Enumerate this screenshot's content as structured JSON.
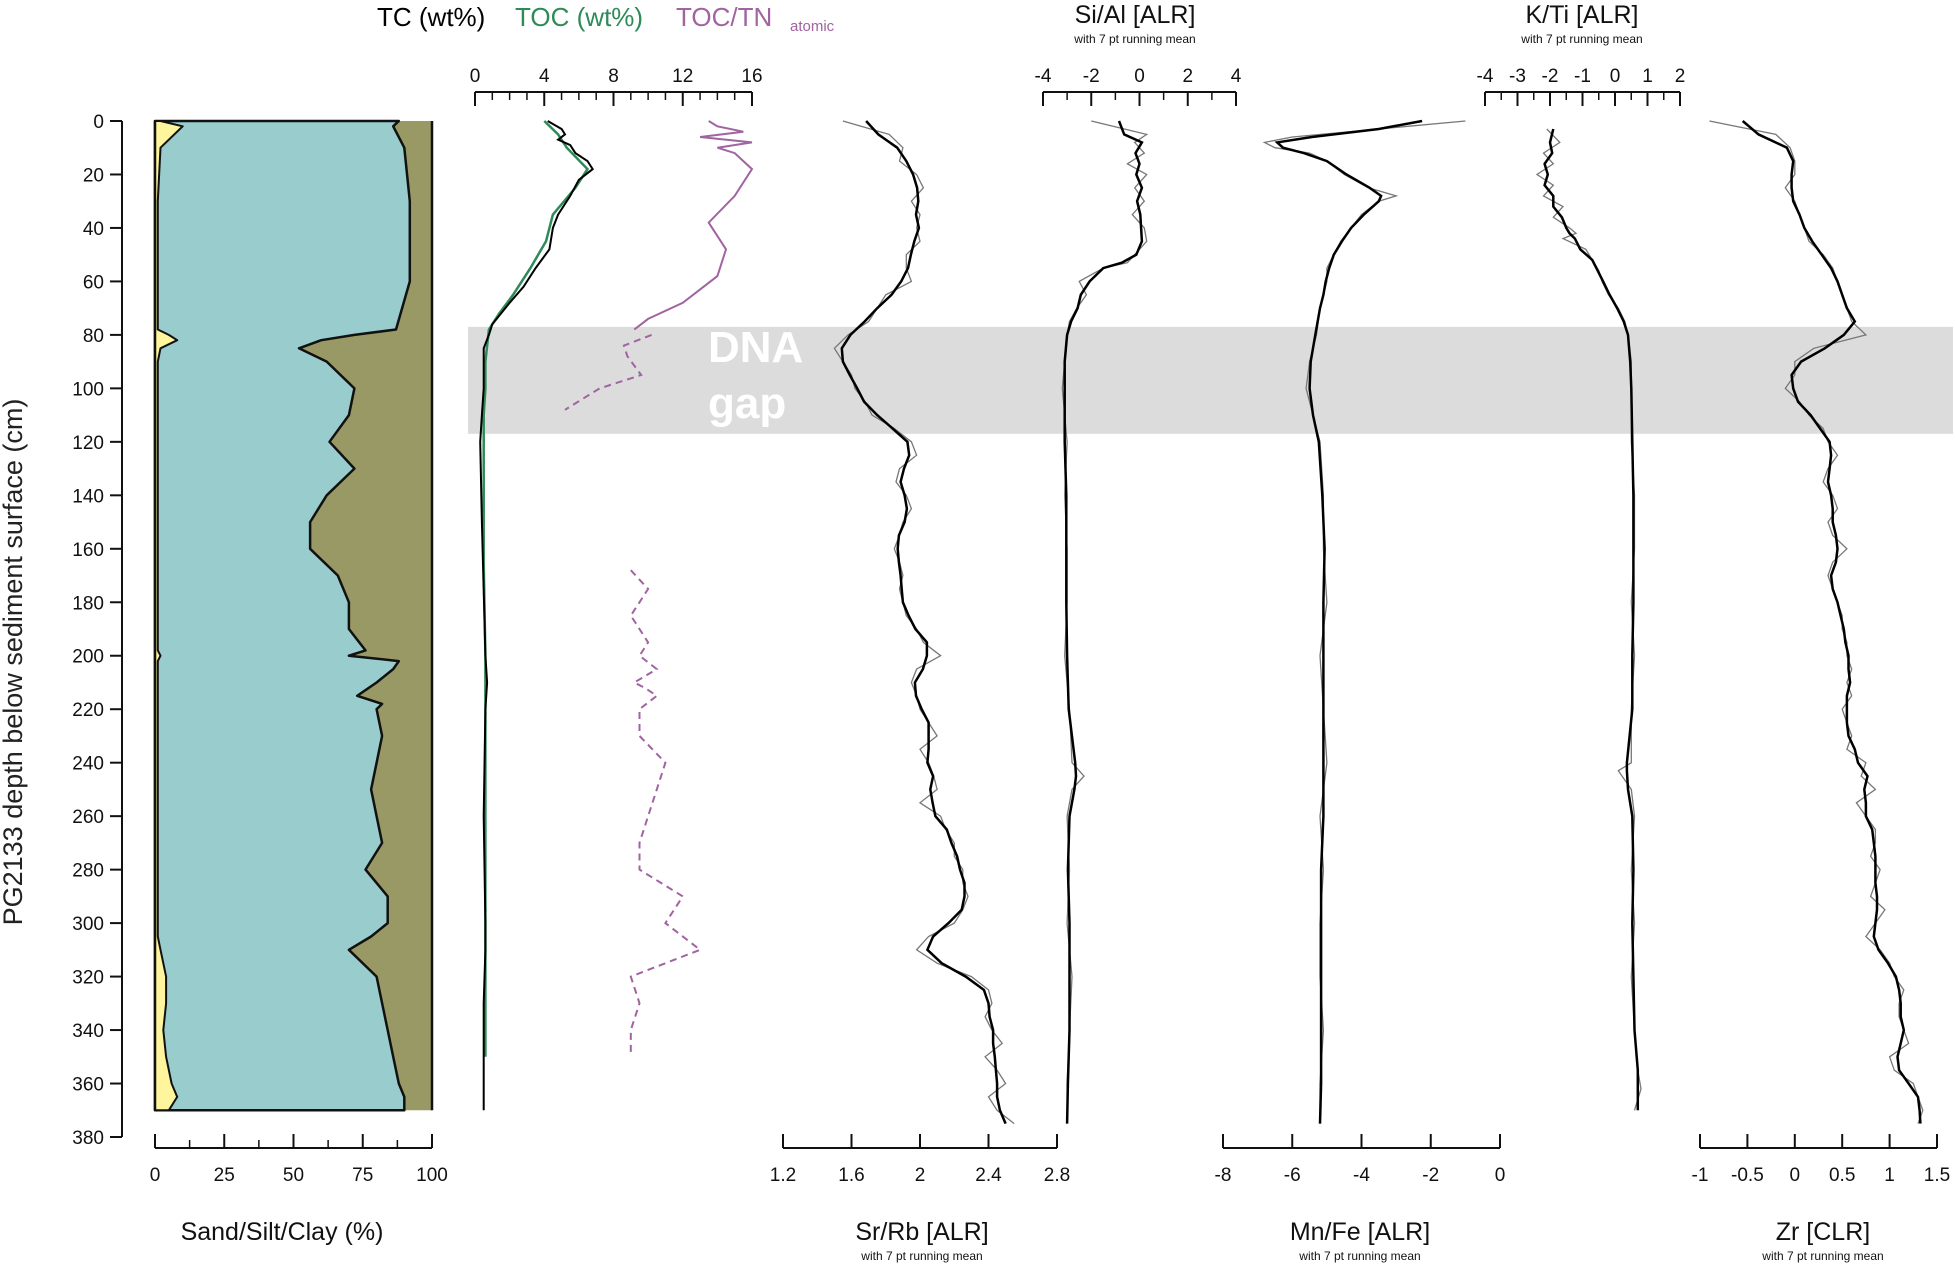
{
  "chart_data": {
    "type": "line",
    "depth_axis": {
      "label": "PG2133 depth below sediment surface (cm)",
      "range": [
        0,
        380
      ],
      "ticks": [
        0,
        20,
        40,
        60,
        80,
        100,
        120,
        140,
        160,
        180,
        200,
        220,
        240,
        260,
        280,
        300,
        320,
        340,
        360,
        380
      ]
    },
    "gap": {
      "label_line1": "DNA",
      "label_line2": "gap",
      "from": 77,
      "to": 117
    },
    "colors": {
      "sand": "#fff59d",
      "silt": "#99cccc",
      "clay": "#999966",
      "tc": "#000000",
      "toc": "#2e8b57",
      "toctn": "#a064a0",
      "gap": "#dcdcdc"
    },
    "panels": {
      "grain": {
        "label": "Sand/Silt/Clay (%)",
        "xlim": [
          0,
          100
        ],
        "ticks": [
          0,
          25,
          50,
          75,
          100
        ],
        "depths": [
          0,
          2,
          10,
          30,
          60,
          78,
          80,
          82,
          85,
          90,
          100,
          110,
          120,
          130,
          140,
          150,
          160,
          170,
          180,
          190,
          198,
          200,
          202,
          205,
          210,
          215,
          218,
          220,
          230,
          240,
          250,
          260,
          270,
          280,
          290,
          300,
          305,
          310,
          320,
          330,
          340,
          350,
          360,
          365,
          370
        ],
        "sand_cum": [
          2,
          10,
          2,
          1,
          1,
          1,
          5,
          8,
          2,
          1,
          1,
          1,
          1,
          1,
          1,
          1,
          1,
          1,
          1,
          1,
          1,
          2,
          1,
          1,
          1,
          1,
          1,
          1,
          1,
          1,
          1,
          1,
          1,
          1,
          1,
          1,
          1,
          2,
          4,
          4,
          3,
          4,
          6,
          8,
          5
        ],
        "silt_cum": [
          88,
          86,
          90,
          92,
          92,
          87,
          72,
          60,
          52,
          62,
          72,
          70,
          63,
          72,
          62,
          56,
          56,
          66,
          70,
          70,
          76,
          70,
          88,
          86,
          80,
          73,
          82,
          80,
          82,
          80,
          78,
          80,
          82,
          76,
          84,
          84,
          78,
          70,
          80,
          82,
          84,
          86,
          88,
          90,
          90
        ]
      },
      "carbon": {
        "header_tc": "TC (wt%)",
        "header_toc": "TOC (wt%)",
        "header_toctn": "TOC/TN",
        "header_toctn_sub": "atomic",
        "xlim": [
          0,
          16
        ],
        "ticks": [
          0,
          4,
          8,
          12,
          16
        ],
        "tc_depths": [
          0,
          3,
          5,
          7,
          9,
          12,
          15,
          18,
          22,
          28,
          35,
          40,
          48,
          55,
          62,
          68,
          72,
          76,
          80,
          85,
          90,
          100,
          110,
          120,
          150,
          200,
          210,
          220,
          260,
          300,
          310,
          330,
          350,
          370
        ],
        "tc_values": [
          4.2,
          5.0,
          5.2,
          4.8,
          5.5,
          5.8,
          6.5,
          6.8,
          6.0,
          5.5,
          4.8,
          4.5,
          4.3,
          3.5,
          2.8,
          2.0,
          1.5,
          1.0,
          0.8,
          0.5,
          0.5,
          0.5,
          0.4,
          0.3,
          0.4,
          0.6,
          0.7,
          0.6,
          0.5,
          0.6,
          0.6,
          0.5,
          0.5,
          0.5
        ],
        "toc_depths": [
          0,
          5,
          10,
          18,
          25,
          35,
          45,
          55,
          65,
          72,
          78,
          90,
          100,
          110,
          165,
          200,
          240,
          280,
          320,
          350
        ],
        "toc_values": [
          4.0,
          4.8,
          5.3,
          6.5,
          5.8,
          4.5,
          4.1,
          3.2,
          2.2,
          1.4,
          0.8,
          0.6,
          0.6,
          0.5,
          0.5,
          0.6,
          0.6,
          0.6,
          0.6,
          0.6
        ],
        "toctn_solid_depths": [
          0,
          2,
          4,
          6,
          8,
          10,
          12,
          18,
          28,
          38,
          48,
          58,
          68,
          74,
          78
        ],
        "toctn_solid_values": [
          13.5,
          14,
          15.5,
          13,
          16,
          14,
          15,
          16,
          15,
          13.5,
          14.5,
          14,
          12,
          10,
          9.2
        ],
        "toctn_dash_upper_depths": [
          80,
          84,
          88,
          95,
          100,
          108
        ],
        "toctn_dash_upper_values": [
          10.2,
          8.6,
          8.8,
          9.6,
          7.2,
          5.2
        ],
        "toctn_dash_lower_depths": [
          168,
          175,
          180,
          185,
          195,
          200,
          205,
          210,
          212,
          215,
          220,
          230,
          240,
          250,
          260,
          270,
          280,
          290,
          300,
          310,
          320,
          330,
          340,
          350
        ],
        "toctn_dash_lower_values": [
          9,
          10,
          9.5,
          9,
          10,
          9.5,
          10.5,
          9.2,
          9.8,
          10.5,
          9.5,
          9.5,
          11,
          10.5,
          10,
          9.5,
          9.5,
          12,
          11,
          13,
          9,
          9.5,
          9,
          9
        ]
      },
      "srrb": {
        "label": "Sr/Rb [ALR]",
        "sublabel": "with 7 pt running mean",
        "xlim": [
          1.2,
          2.8
        ],
        "ticks": [
          "1.2",
          "1.6",
          "2",
          "2.4",
          "2.8"
        ],
        "depths": [
          0,
          5,
          10,
          15,
          20,
          25,
          30,
          35,
          40,
          45,
          50,
          55,
          60,
          65,
          70,
          75,
          80,
          85,
          90,
          95,
          100,
          105,
          110,
          115,
          120,
          125,
          130,
          135,
          140,
          145,
          150,
          155,
          160,
          165,
          170,
          175,
          180,
          185,
          190,
          195,
          200,
          205,
          210,
          215,
          220,
          225,
          230,
          235,
          240,
          245,
          250,
          255,
          260,
          265,
          270,
          275,
          280,
          285,
          290,
          295,
          300,
          305,
          310,
          315,
          320,
          325,
          330,
          335,
          340,
          345,
          350,
          355,
          360,
          365,
          370,
          375
        ],
        "values": [
          1.55,
          1.82,
          1.9,
          1.88,
          1.98,
          2.02,
          1.95,
          2.0,
          1.98,
          2.0,
          1.92,
          1.92,
          1.95,
          1.8,
          1.75,
          1.7,
          1.58,
          1.5,
          1.55,
          1.6,
          1.62,
          1.68,
          1.72,
          1.85,
          1.95,
          1.98,
          1.88,
          1.86,
          1.92,
          1.95,
          1.9,
          1.88,
          1.85,
          1.88,
          1.9,
          1.88,
          1.9,
          1.92,
          1.98,
          2.02,
          2.12,
          1.98,
          1.95,
          1.98,
          2.0,
          2.05,
          2.1,
          2.0,
          2.05,
          2.08,
          2.1,
          2.0,
          2.12,
          2.15,
          2.2,
          2.2,
          2.25,
          2.25,
          2.28,
          2.25,
          2.2,
          2.05,
          1.98,
          2.1,
          2.3,
          2.4,
          2.42,
          2.38,
          2.42,
          2.48,
          2.38,
          2.45,
          2.5,
          2.4,
          2.45,
          2.55
        ]
      },
      "sial": {
        "label": "Si/Al [ALR]",
        "sublabel": "with 7 pt running mean",
        "xlim": [
          -4,
          4
        ],
        "ticks": [
          "-4",
          "-2",
          "0",
          "2",
          "4"
        ],
        "depths": [
          0,
          5,
          8,
          12,
          16,
          20,
          25,
          30,
          35,
          40,
          45,
          50,
          53,
          55,
          60,
          65,
          70,
          75,
          80,
          90,
          100,
          120,
          140,
          160,
          180,
          200,
          220,
          240,
          245,
          250,
          260,
          280,
          300,
          320,
          340,
          360,
          375
        ],
        "values": [
          -2.0,
          0.3,
          -0.2,
          0.2,
          -0.5,
          0.3,
          -0.2,
          0.2,
          -0.3,
          0.2,
          0.3,
          -0.2,
          -0.5,
          -1.5,
          -2.5,
          -2.2,
          -2.6,
          -2.9,
          -3.0,
          -3.1,
          -3.2,
          -3.0,
          -3.1,
          -3.0,
          -3.0,
          -3.1,
          -2.9,
          -2.8,
          -2.3,
          -2.8,
          -3.0,
          -2.9,
          -3.0,
          -2.8,
          -2.9,
          -3.0,
          -3.0
        ]
      },
      "mnfe": {
        "label": "Mn/Fe [ALR]",
        "sublabel": "with 7 pt running mean",
        "xlim": [
          -8,
          0
        ],
        "ticks": [
          "-8",
          "-6",
          "-4",
          "-2",
          "0"
        ],
        "depths": [
          0,
          3,
          6,
          8,
          10,
          12,
          15,
          20,
          25,
          28,
          30,
          35,
          40,
          45,
          50,
          55,
          60,
          65,
          70,
          80,
          90,
          100,
          110,
          120,
          140,
          160,
          180,
          200,
          220,
          240,
          260,
          280,
          300,
          320,
          340,
          360,
          375
        ],
        "values": [
          -1.0,
          -3.5,
          -6.0,
          -6.8,
          -6.5,
          -5.5,
          -5.0,
          -4.5,
          -3.8,
          -3.0,
          -3.5,
          -4.0,
          -4.3,
          -4.6,
          -4.8,
          -5.0,
          -5.0,
          -5.1,
          -5.2,
          -5.3,
          -5.5,
          -5.6,
          -5.4,
          -5.2,
          -5.1,
          -5.1,
          -5.0,
          -5.2,
          -5.1,
          -5.0,
          -5.2,
          -5.1,
          -5.2,
          -5.2,
          -5.1,
          -5.2,
          -5.2
        ]
      },
      "kti": {
        "label": "K/Ti [ALR]",
        "sublabel": "with 7 pt running mean",
        "xlim": [
          -4,
          2
        ],
        "ticks": [
          "-4",
          "-3",
          "-2",
          "-1",
          "0",
          "1",
          "2"
        ],
        "depths": [
          3,
          8,
          12,
          16,
          20,
          24,
          28,
          32,
          36,
          40,
          42,
          44,
          48,
          52,
          56,
          60,
          65,
          70,
          75,
          80,
          90,
          100,
          120,
          140,
          160,
          180,
          200,
          220,
          240,
          243,
          250,
          260,
          280,
          300,
          320,
          340,
          355,
          362,
          370
        ],
        "values": [
          -2.1,
          -1.7,
          -2.2,
          -1.9,
          -2.4,
          -1.9,
          -2.2,
          -1.6,
          -1.9,
          -1.4,
          -1.2,
          -1.6,
          -0.9,
          -0.7,
          -0.5,
          -0.4,
          -0.2,
          0.1,
          0.3,
          0.4,
          0.5,
          0.5,
          0.5,
          0.6,
          0.6,
          0.5,
          0.6,
          0.5,
          0.5,
          0.1,
          0.5,
          0.6,
          0.5,
          0.6,
          0.5,
          0.6,
          0.7,
          0.8,
          0.6
        ]
      },
      "zr": {
        "label": "Zr [CLR]",
        "sublabel": "with 7 pt running mean",
        "xlim": [
          -1,
          1.5
        ],
        "ticks": [
          "-1",
          "-0.5",
          "0",
          "0.5",
          "1",
          "1.5"
        ],
        "depths": [
          0,
          5,
          10,
          15,
          20,
          25,
          30,
          35,
          40,
          45,
          50,
          55,
          60,
          65,
          70,
          75,
          80,
          85,
          90,
          95,
          100,
          105,
          110,
          115,
          120,
          125,
          130,
          135,
          140,
          145,
          150,
          155,
          160,
          165,
          170,
          175,
          180,
          185,
          190,
          195,
          200,
          205,
          210,
          215,
          220,
          225,
          230,
          235,
          240,
          245,
          250,
          255,
          260,
          265,
          270,
          275,
          280,
          285,
          290,
          295,
          300,
          305,
          310,
          315,
          320,
          325,
          330,
          335,
          340,
          345,
          350,
          355,
          360,
          365,
          370,
          375
        ],
        "values": [
          -0.9,
          -0.2,
          -0.05,
          0.0,
          0.0,
          -0.1,
          0.0,
          0.05,
          0.1,
          0.15,
          0.3,
          0.4,
          0.45,
          0.5,
          0.55,
          0.6,
          0.75,
          0.2,
          0.0,
          0.0,
          -0.1,
          0.05,
          0.15,
          0.3,
          0.35,
          0.45,
          0.35,
          0.3,
          0.4,
          0.45,
          0.35,
          0.4,
          0.55,
          0.4,
          0.35,
          0.4,
          0.45,
          0.5,
          0.5,
          0.55,
          0.55,
          0.6,
          0.55,
          0.6,
          0.5,
          0.55,
          0.6,
          0.55,
          0.75,
          0.7,
          0.85,
          0.65,
          0.75,
          0.85,
          0.85,
          0.8,
          0.9,
          0.85,
          0.8,
          0.95,
          0.85,
          0.75,
          0.9,
          1.0,
          1.05,
          1.15,
          1.1,
          1.1,
          1.15,
          1.2,
          1.0,
          1.05,
          1.25,
          1.3,
          1.35,
          1.3
        ]
      }
    }
  }
}
